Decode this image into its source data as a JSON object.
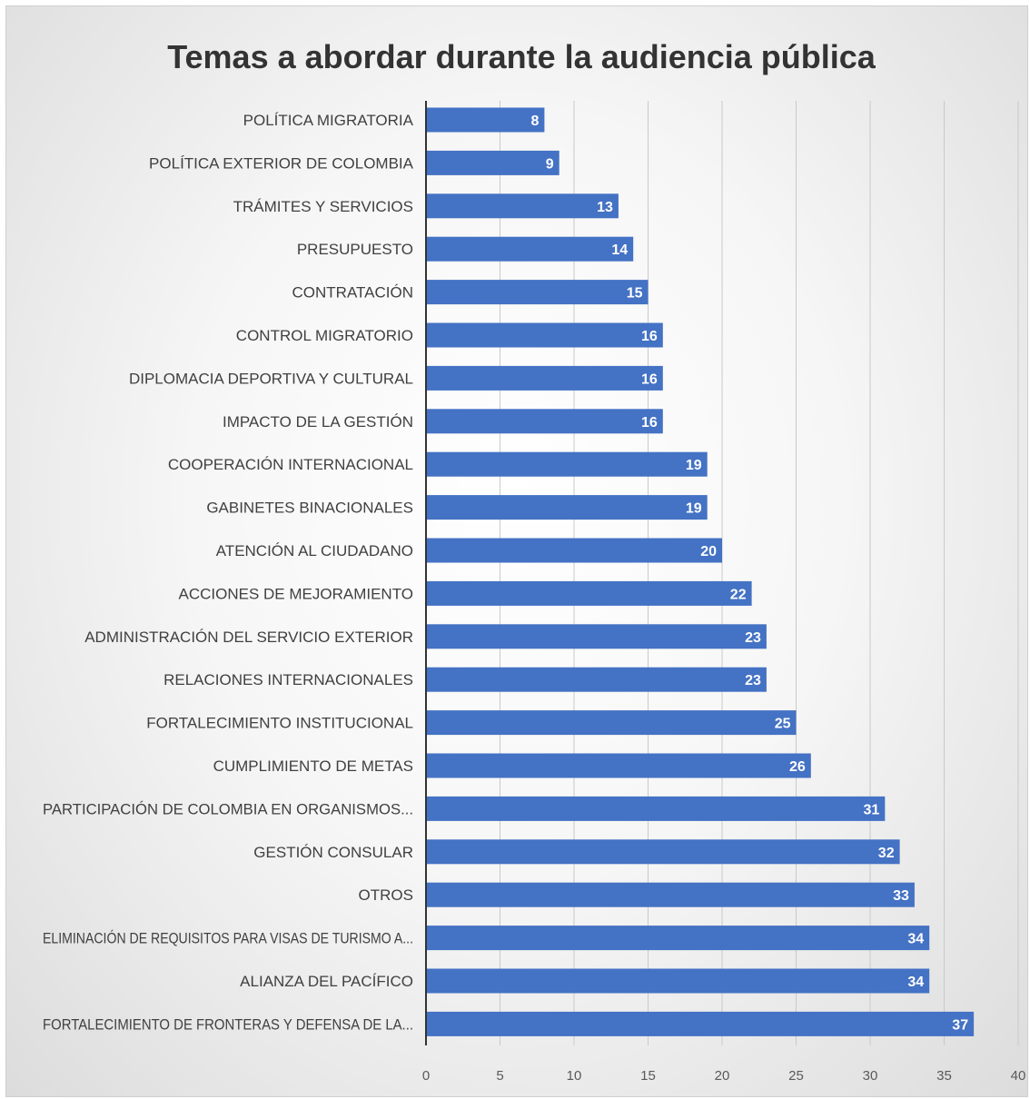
{
  "chart_data": {
    "type": "bar",
    "orientation": "horizontal",
    "title": "Temas a abordar durante la audiencia pública",
    "categories": [
      "POLÍTICA MIGRATORIA",
      "POLÍTICA EXTERIOR DE COLOMBIA",
      "TRÁMITES Y SERVICIOS",
      "PRESUPUESTO",
      "CONTRATACIÓN",
      "CONTROL MIGRATORIO",
      "DIPLOMACIA DEPORTIVA Y CULTURAL",
      "IMPACTO DE LA GESTIÓN",
      "COOPERACIÓN INTERNACIONAL",
      "GABINETES BINACIONALES",
      "ATENCIÓN AL CIUDADANO",
      "ACCIONES DE MEJORAMIENTO",
      "ADMINISTRACIÓN DEL SERVICIO EXTERIOR",
      "RELACIONES INTERNACIONALES",
      "FORTALECIMIENTO INSTITUCIONAL",
      "CUMPLIMIENTO DE METAS",
      "PARTICIPACIÓN DE COLOMBIA EN ORGANISMOS...",
      "GESTIÓN CONSULAR",
      "OTROS",
      "ELIMINACIÓN DE REQUISITOS PARA VISAS DE TURISMO A...",
      "ALIANZA DEL PACÍFICO",
      "FORTALECIMIENTO DE FRONTERAS Y DEFENSA DE LA..."
    ],
    "values": [
      8,
      9,
      13,
      14,
      15,
      16,
      16,
      16,
      19,
      19,
      20,
      22,
      23,
      23,
      25,
      26,
      31,
      32,
      33,
      34,
      34,
      37
    ],
    "xlim": [
      0,
      40
    ],
    "xticks": [
      "0",
      "5",
      "10",
      "15",
      "20",
      "25",
      "30",
      "35",
      "40"
    ],
    "grid": true,
    "data_labels": true,
    "bar_color": "#4472C4",
    "label_color": "#ffffff"
  }
}
